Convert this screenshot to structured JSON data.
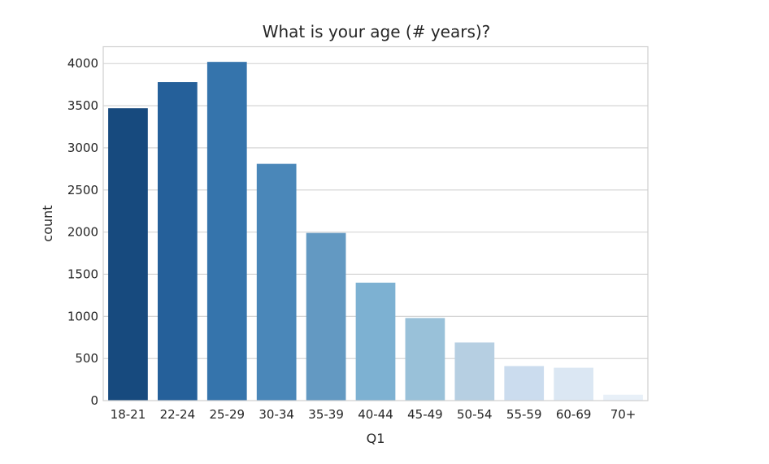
{
  "chart_data": {
    "type": "bar",
    "title": "What is your age (# years)?",
    "xlabel": "Q1",
    "ylabel": "count",
    "categories": [
      "18-21",
      "22-24",
      "25-29",
      "30-34",
      "35-39",
      "40-44",
      "45-49",
      "50-54",
      "55-59",
      "60-69",
      "70+"
    ],
    "values": [
      3470,
      3780,
      4020,
      2810,
      1990,
      1400,
      980,
      690,
      410,
      390,
      70
    ],
    "ylim": [
      0,
      4200
    ],
    "yticks": [
      "0",
      "500",
      "1000",
      "1500",
      "2000",
      "2500",
      "3000",
      "3500",
      "4000"
    ],
    "grid": true,
    "legend": "none",
    "colors": [
      "#174a7e",
      "#25609a",
      "#3574ac",
      "#4a87b9",
      "#6399c2",
      "#7db1d2",
      "#99c1d9",
      "#b6cfe2",
      "#cbdcee",
      "#dbe7f3",
      "#e8f0f8"
    ]
  }
}
